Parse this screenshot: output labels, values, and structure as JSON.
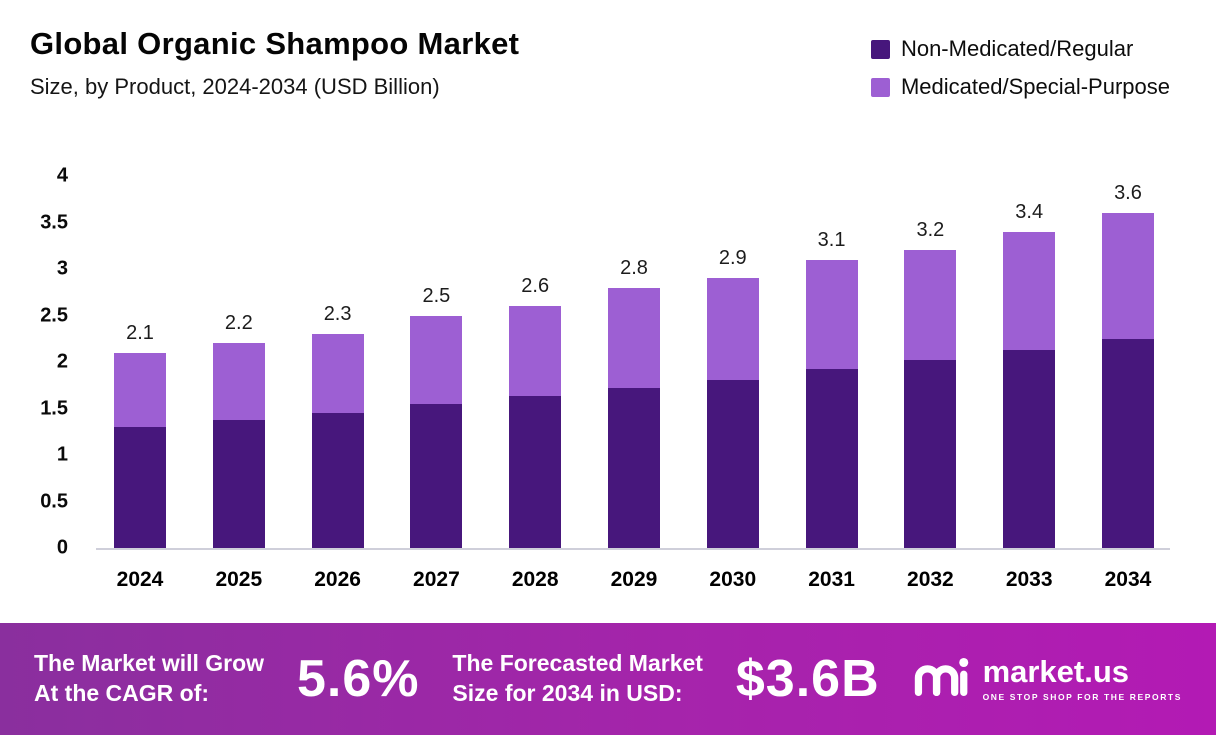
{
  "header": {
    "title": "Global Organic Shampoo Market",
    "subtitle": "Size, by Product, 2024-2034 (USD Billion)"
  },
  "legend": [
    {
      "label": "Non-Medicated/Regular",
      "color": "#47177c"
    },
    {
      "label": "Medicated/Special-Purpose",
      "color": "#9d5fd3"
    }
  ],
  "chart_data": {
    "type": "bar",
    "stacked": true,
    "title": "Global Organic Shampoo Market Size, by Product, 2024-2034 (USD Billion)",
    "xlabel": "",
    "ylabel": "",
    "ylim": [
      0,
      4
    ],
    "yticks": [
      0,
      0.5,
      1,
      1.5,
      2,
      2.5,
      3,
      3.5,
      4
    ],
    "grid": false,
    "legend_position": "top-right",
    "categories": [
      "2024",
      "2025",
      "2026",
      "2027",
      "2028",
      "2029",
      "2030",
      "2031",
      "2032",
      "2033",
      "2034"
    ],
    "totals": [
      2.1,
      2.2,
      2.3,
      2.5,
      2.6,
      2.8,
      2.9,
      3.1,
      3.2,
      3.4,
      3.6
    ],
    "series": [
      {
        "name": "Non-Medicated/Regular",
        "color": "#47177c",
        "values": [
          1.3,
          1.38,
          1.45,
          1.55,
          1.63,
          1.72,
          1.81,
          1.92,
          2.02,
          2.13,
          2.25
        ]
      },
      {
        "name": "Medicated/Special-Purpose",
        "color": "#9d5fd3",
        "values": [
          0.8,
          0.82,
          0.85,
          0.95,
          0.97,
          1.08,
          1.09,
          1.18,
          1.18,
          1.27,
          1.35
        ]
      }
    ]
  },
  "footer": {
    "cagr_label_line1": "The Market will Grow",
    "cagr_label_line2": "At the CAGR of:",
    "cagr_value": "5.6%",
    "forecast_label_line1": "The Forecasted Market",
    "forecast_label_line2": "Size for 2034 in USD:",
    "forecast_value": "$3.6B",
    "brand": {
      "name": "market.us",
      "tagline": "ONE STOP SHOP FOR THE REPORTS"
    }
  }
}
